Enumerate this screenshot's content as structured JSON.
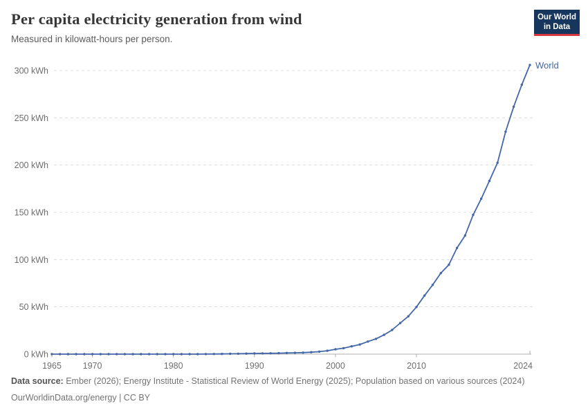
{
  "header": {
    "title": "Per capita electricity generation from wind",
    "subtitle": "Measured in kilowatt-hours per person."
  },
  "logo": {
    "line1": "Our World",
    "line2": "in Data"
  },
  "footer": {
    "source_label": "Data source:",
    "sources": " Ember (2026); Energy Institute - Statistical Review of World Energy (2025); Population based on various sources (2024)",
    "note": "OurWorldinData.org/energy | CC BY"
  },
  "colors": {
    "line": "#4266a8",
    "grid": "#dcdcdc",
    "axis": "#adadad",
    "tick_text": "#6e6e6e",
    "title_text": "#373737",
    "logo_bg": "#17365d",
    "logo_red": "#d7383f"
  },
  "chart_data": {
    "type": "line",
    "title": "Per capita electricity generation from wind",
    "subtitle": "Measured in kilowatt-hours per person.",
    "unit": "kWh",
    "xlabel": "",
    "ylabel": "",
    "xlim": [
      1965,
      2024
    ],
    "ylim": [
      0,
      300
    ],
    "grid": "horizontal-dashed",
    "legend_position": "line-end",
    "yticks": [
      {
        "value": 0,
        "label": "0 kWh"
      },
      {
        "value": 50,
        "label": "50 kWh"
      },
      {
        "value": 100,
        "label": "100 kWh"
      },
      {
        "value": 150,
        "label": "150 kWh"
      },
      {
        "value": 200,
        "label": "200 kWh"
      },
      {
        "value": 250,
        "label": "250 kWh"
      },
      {
        "value": 300,
        "label": "300 kWh"
      }
    ],
    "xticks": [
      {
        "year": 1965,
        "label": "1965"
      },
      {
        "year": 1970,
        "label": "1970"
      },
      {
        "year": 1980,
        "label": "1980"
      },
      {
        "year": 1990,
        "label": "1990"
      },
      {
        "year": 2000,
        "label": "2000"
      },
      {
        "year": 2010,
        "label": "2010"
      },
      {
        "year": 2024,
        "label": "2024",
        "align": "end"
      }
    ],
    "series": [
      {
        "name": "World",
        "color": "#4266a8",
        "x": [
          1965,
          1966,
          1967,
          1968,
          1969,
          1970,
          1971,
          1972,
          1973,
          1974,
          1975,
          1976,
          1977,
          1978,
          1979,
          1980,
          1981,
          1982,
          1983,
          1984,
          1985,
          1986,
          1987,
          1988,
          1989,
          1990,
          1991,
          1992,
          1993,
          1994,
          1995,
          1996,
          1997,
          1998,
          1999,
          2000,
          2001,
          2002,
          2003,
          2004,
          2005,
          2006,
          2007,
          2008,
          2009,
          2010,
          2011,
          2012,
          2013,
          2014,
          2015,
          2016,
          2017,
          2018,
          2019,
          2020,
          2021,
          2022,
          2023,
          2024
        ],
        "values": [
          0,
          0,
          0,
          0,
          0,
          0,
          0,
          0,
          0,
          0,
          0,
          0,
          0,
          0,
          0,
          0,
          0.01,
          0.01,
          0.02,
          0.05,
          0.13,
          0.21,
          0.33,
          0.44,
          0.56,
          0.74,
          0.81,
          0.88,
          1.04,
          1.26,
          1.42,
          1.61,
          2.07,
          2.66,
          3.55,
          5.1,
          6.3,
          8.3,
          10.2,
          13.3,
          16.2,
          20.4,
          25.6,
          32.9,
          40,
          49.9,
          62,
          73.3,
          85.7,
          94.6,
          112.3,
          125.4,
          147.4,
          164.5,
          183.2,
          202.5,
          235.3,
          261.8,
          285,
          305.9
        ]
      }
    ]
  }
}
